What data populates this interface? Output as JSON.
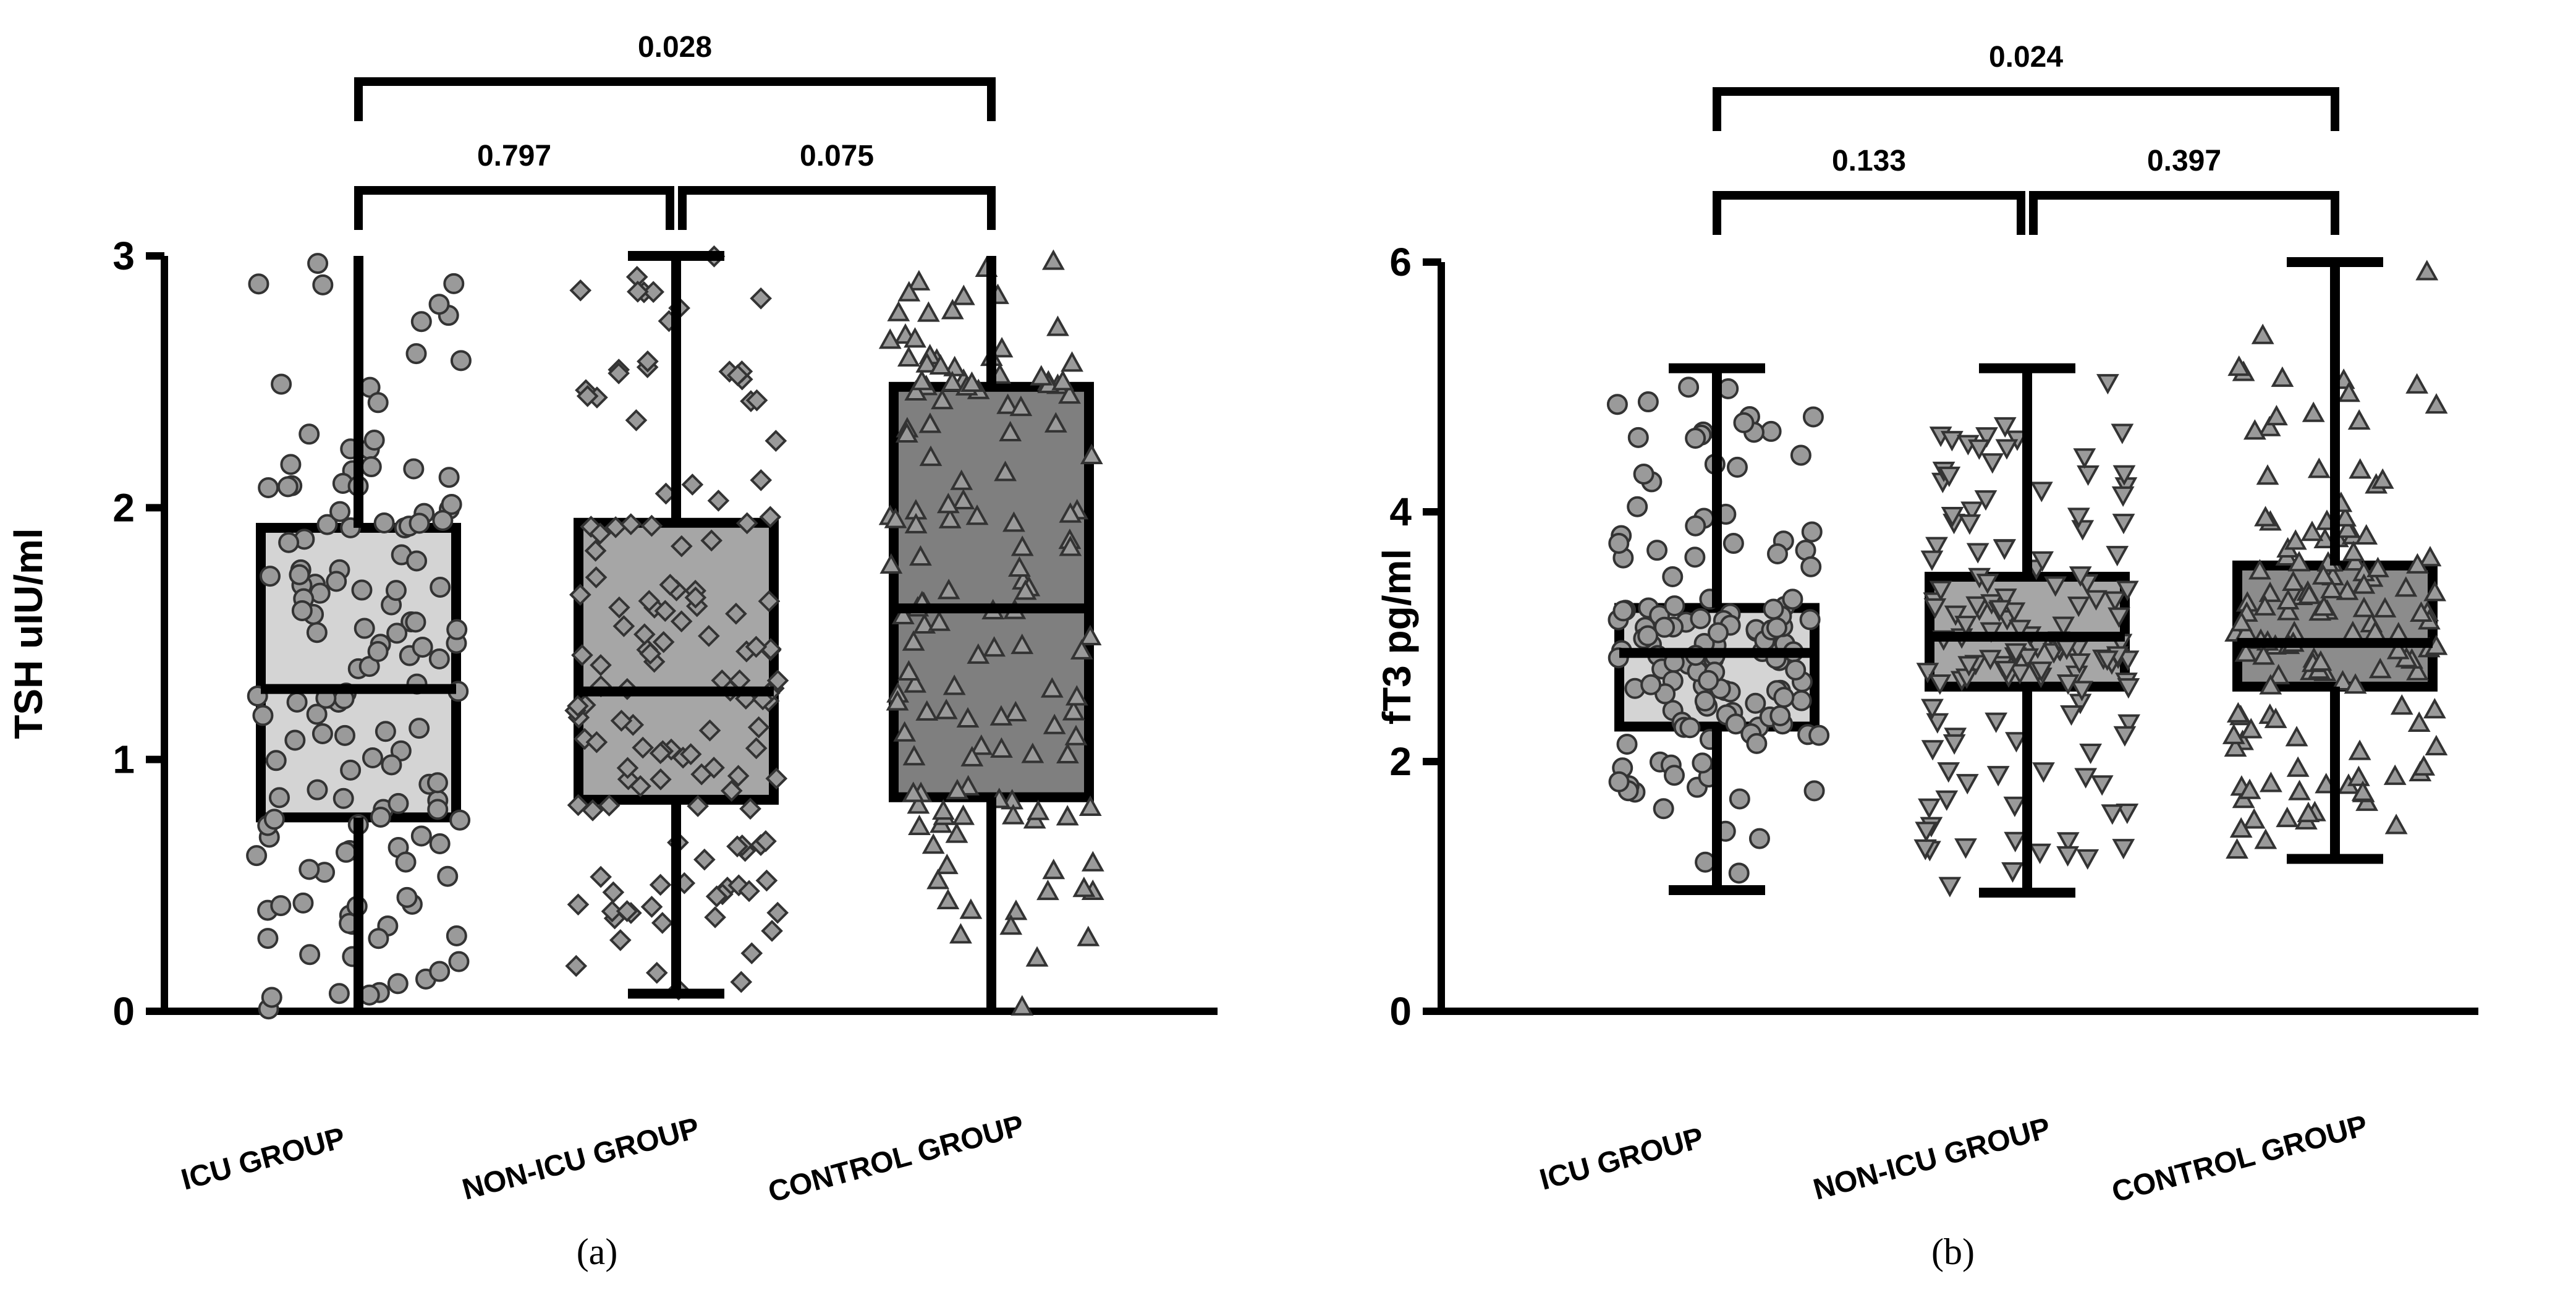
{
  "chart_data": [
    {
      "type": "box",
      "panel_label": "(a)",
      "ylabel": "TSH uIU/ml",
      "ylim": [
        0,
        3
      ],
      "yticks": [
        "0",
        "1",
        "2",
        "3"
      ],
      "categories": [
        "ICU GROUP",
        "NON-ICU GROUP",
        "CONTROL GROUP"
      ],
      "marker_shapes": [
        "circle",
        "diamond",
        "triangle"
      ],
      "box_colors": [
        "#d4d4d4",
        "#a6a6a6",
        "#7f7f7f"
      ],
      "boxes": [
        {
          "min": 0.0,
          "q1": 0.77,
          "median": 1.28,
          "q3": 1.92,
          "max": 3.0
        },
        {
          "min": 0.07,
          "q1": 0.84,
          "median": 1.27,
          "q3": 1.94,
          "max": 3.0
        },
        {
          "min": 0.0,
          "q1": 0.85,
          "median": 1.6,
          "q3": 2.48,
          "max": 3.0
        }
      ],
      "comparisons": [
        {
          "from": "ICU GROUP",
          "to": "NON-ICU GROUP",
          "p": "0.797"
        },
        {
          "from": "NON-ICU GROUP",
          "to": "CONTROL GROUP",
          "p": "0.075"
        },
        {
          "from": "ICU GROUP",
          "to": "CONTROL GROUP",
          "p": "0.028"
        }
      ]
    },
    {
      "type": "box",
      "panel_label": "(b)",
      "ylabel": "fT3 pg/ml",
      "ylim": [
        0,
        6
      ],
      "yticks": [
        "0",
        "2",
        "4",
        "6"
      ],
      "categories": [
        "ICU GROUP",
        "NON-ICU GROUP",
        "CONTROL GROUP"
      ],
      "marker_shapes": [
        "circle",
        "down-triangle",
        "triangle"
      ],
      "box_colors": [
        "#d4d4d4",
        "#a6a6a6",
        "#8c8c8c"
      ],
      "boxes": [
        {
          "min": 0.97,
          "q1": 2.28,
          "median": 2.87,
          "q3": 3.23,
          "max": 5.15
        },
        {
          "min": 0.95,
          "q1": 2.6,
          "median": 3.0,
          "q3": 3.48,
          "max": 5.15
        },
        {
          "min": 1.22,
          "q1": 2.6,
          "median": 2.95,
          "q3": 3.57,
          "max": 6.0
        }
      ],
      "comparisons": [
        {
          "from": "ICU GROUP",
          "to": "NON-ICU GROUP",
          "p": "0.133"
        },
        {
          "from": "NON-ICU GROUP",
          "to": "CONTROL GROUP",
          "p": "0.397"
        },
        {
          "from": "ICU GROUP",
          "to": "CONTROL GROUP",
          "p": "0.024"
        }
      ]
    }
  ]
}
